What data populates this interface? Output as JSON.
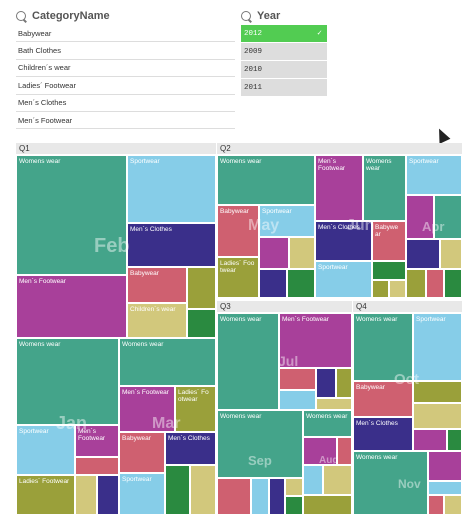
{
  "category_filter": {
    "title": "CategoryName",
    "items": [
      "Babywear",
      "Bath Clothes",
      "Children´s wear",
      "Ladies´ Footwear",
      "Men´s Clothes",
      "Men´s Footwear"
    ]
  },
  "year_filter": {
    "title": "Year",
    "items": [
      {
        "label": "2012",
        "selected": true
      },
      {
        "label": "2009",
        "selected": false
      },
      {
        "label": "2010",
        "selected": false
      },
      {
        "label": "2011",
        "selected": false
      }
    ]
  },
  "colors": {
    "teal": "#44a48a",
    "sky": "#86cde8",
    "navy": "#3a2f8a",
    "pink": "#cf6070",
    "olive": "#9aa03a",
    "khaki": "#d2c87c",
    "purple": "#a8409a",
    "green": "#2a8a40",
    "selected": "#52cc52"
  },
  "treemap": {
    "quarters": [
      "Q1",
      "Q2",
      "Q3",
      "Q4"
    ],
    "months": [
      "Feb",
      "Jan",
      "Mar",
      "May",
      "Jun",
      "Apr",
      "Jul",
      "Sep",
      "Aug",
      "Oct",
      "Nov"
    ],
    "labels": {
      "q1_feb_womens": "Womens wear",
      "q1_feb_sport": "Sportwear",
      "q1_feb_menclothes": "Men´s Clothes",
      "q1_feb_menfoot": "Men´s Footwear",
      "q1_feb_baby": "Babywear",
      "q1_feb_children": "Children´s wear",
      "q1_jan_womens": "Womens wear",
      "q1_jan_sport": "Sportwear",
      "q1_jan_menfoot": "Men´s Footwear",
      "q1_jan_ladies": "Ladies´ Footwear",
      "q1_mar_womens": "Womens wear",
      "q1_mar_menfoot": "Men´s Footwear",
      "q1_mar_ladies": "Ladies´ Fo otwear",
      "q1_mar_baby": "Babywear",
      "q1_mar_menclothes": "Men´s Clothes",
      "q1_mar_sport": "Sportwear",
      "q2_may_womens": "Womens wear",
      "q2_may_baby": "Babywear",
      "q2_may_sport": "Sportwear",
      "q2_may_ladies": "Ladies´ Foo twear",
      "q2_jun_menfoot": "Men´s Footwear",
      "q2_jun_womens": "Womens wear",
      "q2_jun_menclothes": "Men´s Clothes",
      "q2_jun_baby": "Babywe ar",
      "q2_jun_sport": "Sportwear",
      "q2_apr_sport": "Sportwear",
      "q3_jul_womens": "Womens wear",
      "q3_jul_menfoot": "Men´s Footwear",
      "q3_sep_womens": "Womens wear",
      "q3_aug_womens": "Womens wear",
      "q4_oct_womens": "Womens wear",
      "q4_oct_sport": "Sportwear",
      "q4_oct_baby": "Babywear",
      "q4_oct_menclothes": "Men´s Clothes",
      "q4_nov_womens": "Womens wear"
    }
  }
}
